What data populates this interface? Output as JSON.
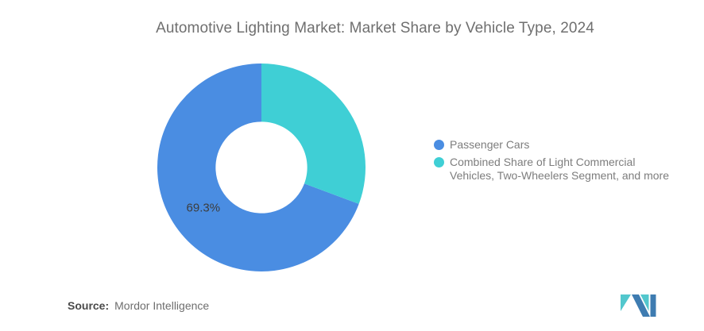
{
  "chart_data": {
    "type": "pie",
    "subtype": "donut",
    "title": "Automotive Lighting Market: Market Share by Vehicle Type, 2024",
    "series": [
      {
        "name": "Passenger Cars",
        "value": 69.3,
        "color": "#4A8DE2",
        "data_label": "69.3%"
      },
      {
        "name": "Combined Share of Light Commercial\nVehicles, Two-Wheelers Segment, and more",
        "value": 30.7,
        "color": "#3FCFD5",
        "data_label": ""
      }
    ],
    "donut_hole_ratio": 0.44,
    "start_angle": "top",
    "direction": "counterclockwise",
    "legend_position": "right",
    "data_label_radius_ratio": 0.68,
    "background": "#ffffff"
  },
  "footer": {
    "source_label": "Source:",
    "source_value": "Mordor Intelligence"
  },
  "logo": {
    "name": "mordor-intelligence-logo",
    "colors": {
      "blue": "#3E7CB1",
      "teal": "#52C7CD"
    }
  }
}
